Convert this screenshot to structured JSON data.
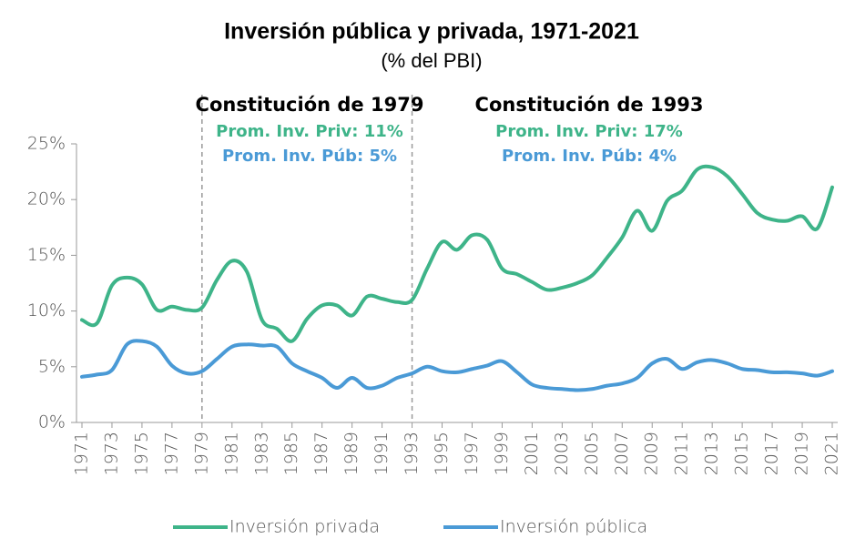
{
  "chart_data": {
    "type": "line",
    "title": "Inversión pública y privada, 1971-2021",
    "subtitle": "(% del PBI)",
    "x": [
      1971,
      1972,
      1973,
      1974,
      1975,
      1976,
      1977,
      1978,
      1979,
      1980,
      1981,
      1982,
      1983,
      1984,
      1985,
      1986,
      1987,
      1988,
      1989,
      1990,
      1991,
      1992,
      1993,
      1994,
      1995,
      1996,
      1997,
      1998,
      1999,
      2000,
      2001,
      2002,
      2003,
      2004,
      2005,
      2006,
      2007,
      2008,
      2009,
      2010,
      2011,
      2012,
      2013,
      2014,
      2015,
      2016,
      2017,
      2018,
      2019,
      2020,
      2021
    ],
    "series": [
      {
        "name": "Inversión privada",
        "color": "#3eb489",
        "values": [
          9.2,
          8.9,
          12.3,
          13.0,
          12.4,
          10.1,
          10.4,
          10.1,
          10.3,
          12.8,
          14.5,
          13.5,
          9.2,
          8.4,
          7.3,
          9.3,
          10.5,
          10.5,
          9.6,
          11.3,
          11.1,
          10.8,
          11.0,
          13.8,
          16.2,
          15.5,
          16.8,
          16.4,
          13.8,
          13.3,
          12.6,
          11.9,
          12.1,
          12.5,
          13.2,
          14.8,
          16.6,
          19.0,
          17.2,
          19.9,
          20.8,
          22.7,
          22.9,
          22.1,
          20.5,
          18.8,
          18.2,
          18.1,
          18.5,
          17.4,
          21.1
        ]
      },
      {
        "name": "Inversión pública",
        "color": "#4a9ad6",
        "values": [
          4.1,
          4.3,
          4.7,
          7.0,
          7.3,
          6.8,
          5.1,
          4.4,
          4.6,
          5.7,
          6.8,
          7.0,
          6.9,
          6.8,
          5.3,
          4.6,
          4.0,
          3.1,
          4.0,
          3.1,
          3.3,
          4.0,
          4.4,
          5.0,
          4.6,
          4.5,
          4.8,
          5.1,
          5.5,
          4.5,
          3.4,
          3.1,
          3.0,
          2.9,
          3.0,
          3.3,
          3.5,
          4.0,
          5.3,
          5.7,
          4.8,
          5.4,
          5.6,
          5.3,
          4.8,
          4.7,
          4.5,
          4.5,
          4.4,
          4.2,
          4.6
        ]
      }
    ],
    "xlim": [
      1971,
      2021
    ],
    "xticks": [
      1971,
      1973,
      1975,
      1977,
      1979,
      1981,
      1983,
      1985,
      1987,
      1989,
      1991,
      1993,
      1995,
      1997,
      1999,
      2001,
      2003,
      2005,
      2007,
      2009,
      2011,
      2013,
      2015,
      2017,
      2019,
      2021
    ],
    "ylim": [
      0,
      25
    ],
    "yticks": [
      {
        "value": 0,
        "label": "0%"
      },
      {
        "value": 5,
        "label": "5%"
      },
      {
        "value": 10,
        "label": "10%"
      },
      {
        "value": 15,
        "label": "15%"
      },
      {
        "value": 20,
        "label": "20%"
      },
      {
        "value": 25,
        "label": "25%"
      }
    ],
    "annotations": [
      {
        "x": 1979,
        "title": "Constitución de 1979",
        "priv": "Prom. Inv. Priv: 11%",
        "pub": "Prom. Inv. Púb: 5%"
      },
      {
        "x": 1993,
        "title": "Constitución de 1993",
        "priv": "Prom. Inv. Priv: 17%",
        "pub": "Prom. Inv. Púb: 4%"
      }
    ],
    "legend": "bottom"
  }
}
